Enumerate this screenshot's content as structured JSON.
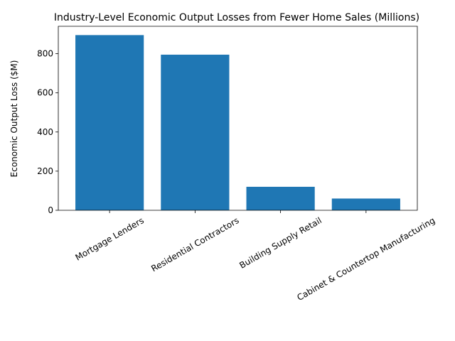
{
  "chart_data": {
    "type": "bar",
    "title": "Industry-Level Economic Output Losses from Fewer Home Sales (Millions)",
    "y_label": "Economic Output Loss ($M)",
    "categories": [
      "Mortgage Lenders",
      "Residential Contractors",
      "Building Supply Retail",
      "Cabinet & Countertop Manufacturing"
    ],
    "values": [
      895,
      795,
      120,
      60
    ],
    "color": "#1f77b4",
    "ylim": [
      0,
      940
    ],
    "yticks": [
      0,
      200,
      400,
      600,
      800
    ],
    "grid": false
  }
}
